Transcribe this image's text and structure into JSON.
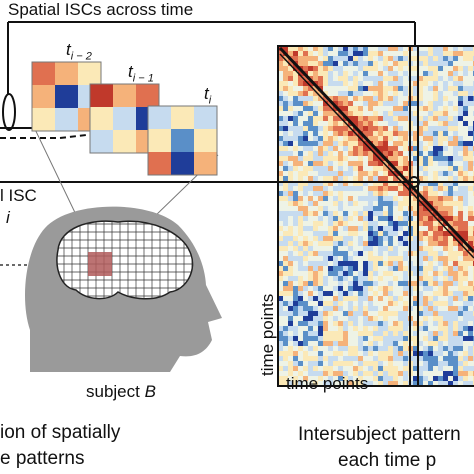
{
  "top_title": "Spatial ISCs across time",
  "left_header": {
    "line1": "l ISC",
    "line2": "i"
  },
  "time_labels": {
    "t_im2": {
      "base": "t",
      "sub": "i − 2"
    },
    "t_im1": {
      "base": "t",
      "sub": "i − 1"
    },
    "t_i": {
      "base": "t",
      "sub": "i"
    }
  },
  "subject_label": {
    "text": "subject ",
    "var": "B"
  },
  "matrix_axes": {
    "x_label": "time points",
    "y_label": "time points"
  },
  "caption_left": {
    "line1": "ion of spatially",
    "line2": "e patterns"
  },
  "caption_right": {
    "line1": "Intersubject pattern",
    "line2": "each time p"
  },
  "colors": {
    "red_dark": "#c0392b",
    "red": "#e07050",
    "orange": "#f5b27a",
    "cream": "#fbe9b7",
    "light_blue": "#c6dbef",
    "blue": "#5a8fc8",
    "navy": "#1f3d99",
    "head_gray": "#9a9a9a",
    "roi": "#b05a5a"
  }
}
